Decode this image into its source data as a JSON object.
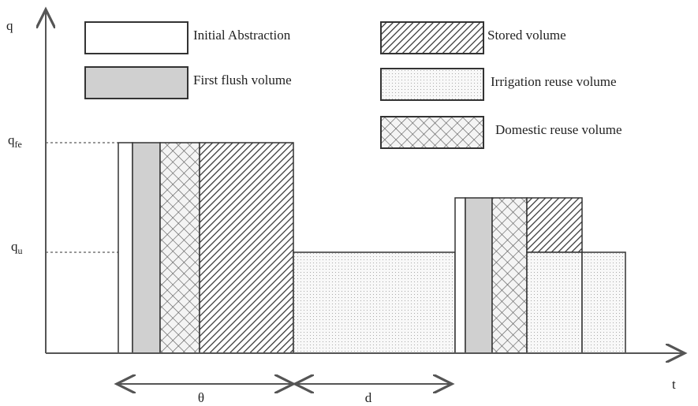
{
  "axes": {
    "y_label": "q",
    "x_label": "t",
    "q_fe": {
      "base": "q",
      "sub": "fe"
    },
    "q_u": {
      "base": "q",
      "sub": "u"
    }
  },
  "legend": [
    {
      "label": "Initial Abstraction"
    },
    {
      "label": "First flush volume"
    },
    {
      "label": "Stored volume"
    },
    {
      "label": "Irrigation reuse volume"
    },
    {
      "label": "Domestic reuse volume"
    }
  ],
  "intervals": {
    "theta": "θ",
    "d": "d"
  }
}
